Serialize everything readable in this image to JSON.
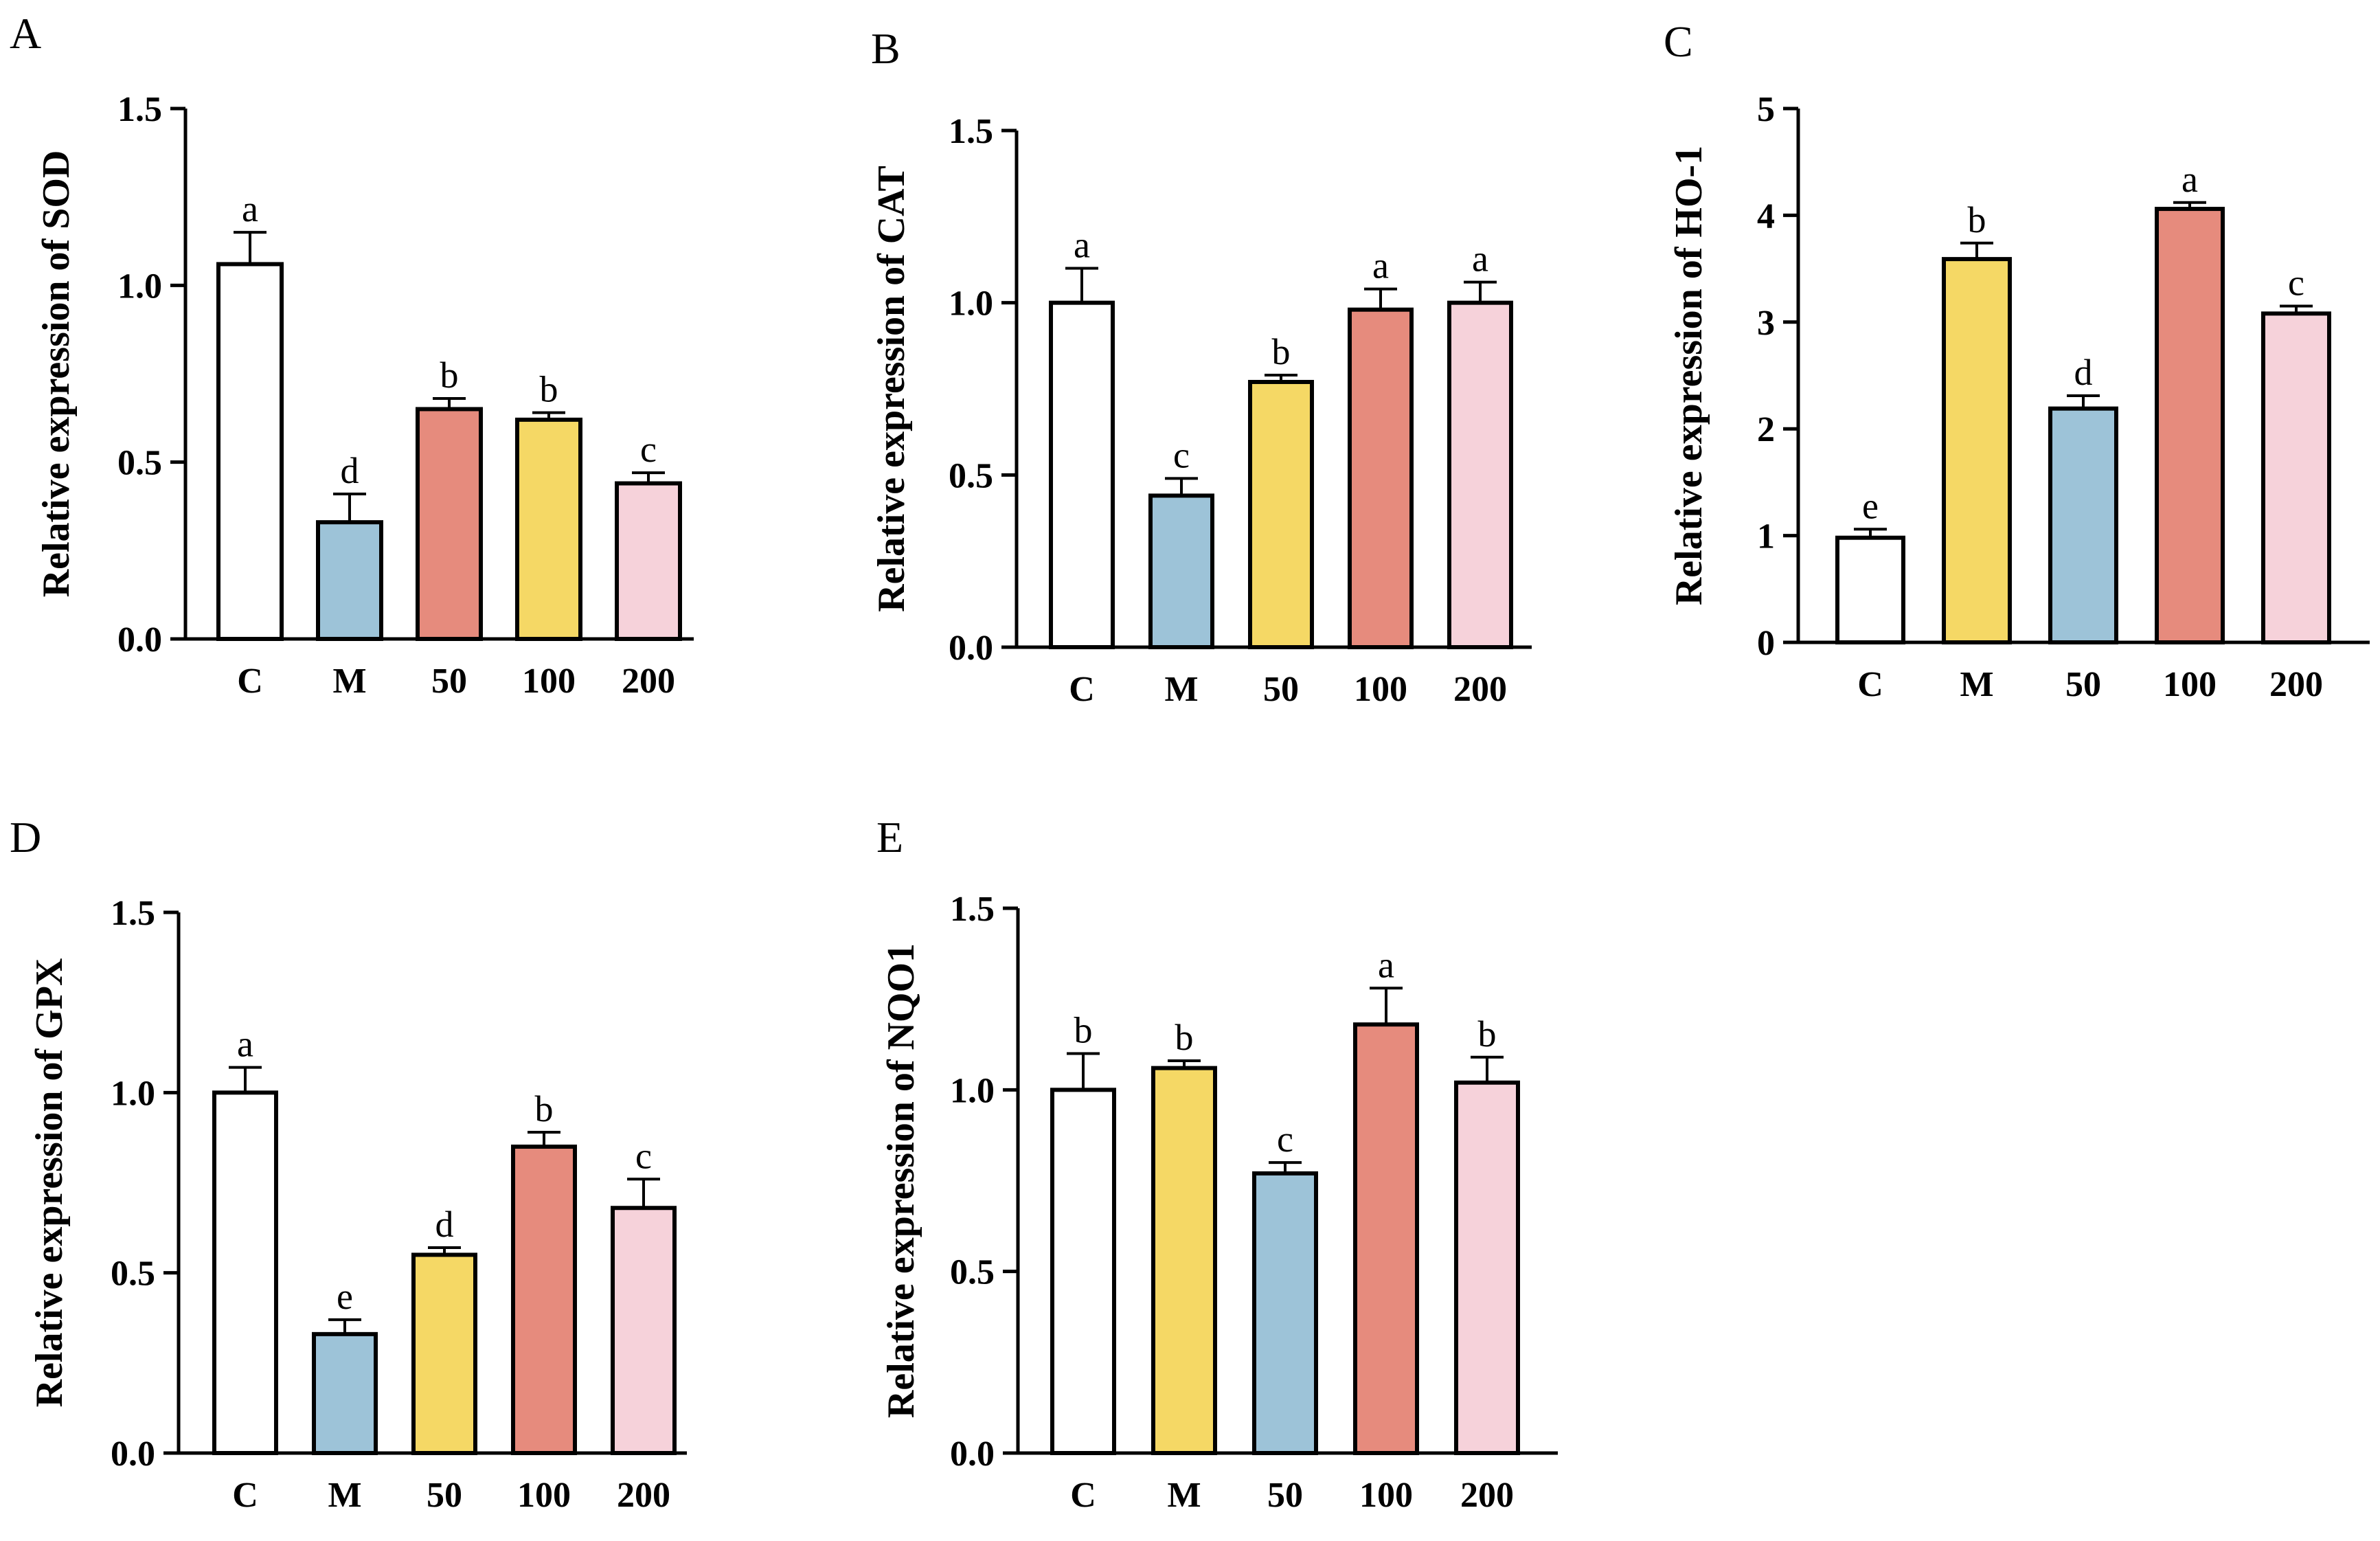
{
  "colors": {
    "white": "#ffffff",
    "blue": "#9dc3d8",
    "yellow": "#f5d865",
    "red": "#e68b7d",
    "pink": "#f6d2da",
    "stroke": "#000000"
  },
  "panels": [
    {
      "letter": "A"
    },
    {
      "letter": "B"
    },
    {
      "letter": "C"
    },
    {
      "letter": "D"
    },
    {
      "letter": "E"
    }
  ],
  "chart_data": [
    {
      "type": "bar",
      "panel": "A",
      "ylabel": "Relative expression of SOD",
      "categories": [
        "C",
        "M",
        "50",
        "100",
        "200"
      ],
      "values": [
        1.06,
        0.33,
        0.65,
        0.62,
        0.44
      ],
      "errors": [
        0.09,
        0.08,
        0.03,
        0.02,
        0.03
      ],
      "significance": [
        "a",
        "d",
        "b",
        "b",
        "c"
      ],
      "bar_colors": [
        "white",
        "blue",
        "red",
        "yellow",
        "pink"
      ],
      "ylim": [
        0,
        1.5
      ],
      "yticks": [
        "0.0",
        "0.5",
        "1.0",
        "1.5"
      ]
    },
    {
      "type": "bar",
      "panel": "B",
      "ylabel": "Relative expression of CAT",
      "categories": [
        "C",
        "M",
        "50",
        "100",
        "200"
      ],
      "values": [
        1.0,
        0.44,
        0.77,
        0.98,
        1.0
      ],
      "errors": [
        0.1,
        0.05,
        0.02,
        0.06,
        0.06
      ],
      "significance": [
        "a",
        "c",
        "b",
        "a",
        "a"
      ],
      "bar_colors": [
        "white",
        "blue",
        "yellow",
        "red",
        "pink"
      ],
      "ylim": [
        0,
        1.5
      ],
      "yticks": [
        "0.0",
        "0.5",
        "1.0",
        "1.5"
      ]
    },
    {
      "type": "bar",
      "panel": "C",
      "ylabel": "Relative expression of HO-1",
      "categories": [
        "C",
        "M",
        "50",
        "100",
        "200"
      ],
      "values": [
        0.98,
        3.59,
        2.19,
        4.06,
        3.08
      ],
      "errors": [
        0.08,
        0.15,
        0.12,
        0.06,
        0.07
      ],
      "significance": [
        "e",
        "b",
        "d",
        "a",
        "c"
      ],
      "bar_colors": [
        "white",
        "yellow",
        "blue",
        "red",
        "pink"
      ],
      "ylim": [
        0,
        5
      ],
      "yticks": [
        "0",
        "1",
        "2",
        "3",
        "4",
        "5"
      ]
    },
    {
      "type": "bar",
      "panel": "D",
      "ylabel": "Relative expression of GPX",
      "categories": [
        "C",
        "M",
        "50",
        "100",
        "200"
      ],
      "values": [
        1.0,
        0.33,
        0.55,
        0.85,
        0.68
      ],
      "errors": [
        0.07,
        0.04,
        0.02,
        0.04,
        0.08
      ],
      "significance": [
        "a",
        "e",
        "d",
        "b",
        "c"
      ],
      "bar_colors": [
        "white",
        "blue",
        "yellow",
        "red",
        "pink"
      ],
      "ylim": [
        0,
        1.5
      ],
      "yticks": [
        "0.0",
        "0.5",
        "1.0",
        "1.5"
      ]
    },
    {
      "type": "bar",
      "panel": "E",
      "ylabel": "Relative expression of NQO1",
      "categories": [
        "C",
        "M",
        "50",
        "100",
        "200"
      ],
      "values": [
        1.0,
        1.06,
        0.77,
        1.18,
        1.02
      ],
      "errors": [
        0.1,
        0.02,
        0.03,
        0.1,
        0.07
      ],
      "significance": [
        "b",
        "b",
        "c",
        "a",
        "b"
      ],
      "bar_colors": [
        "white",
        "yellow",
        "blue",
        "red",
        "pink"
      ],
      "ylim": [
        0,
        1.5
      ],
      "yticks": [
        "0.0",
        "0.5",
        "1.0",
        "1.5"
      ]
    }
  ]
}
